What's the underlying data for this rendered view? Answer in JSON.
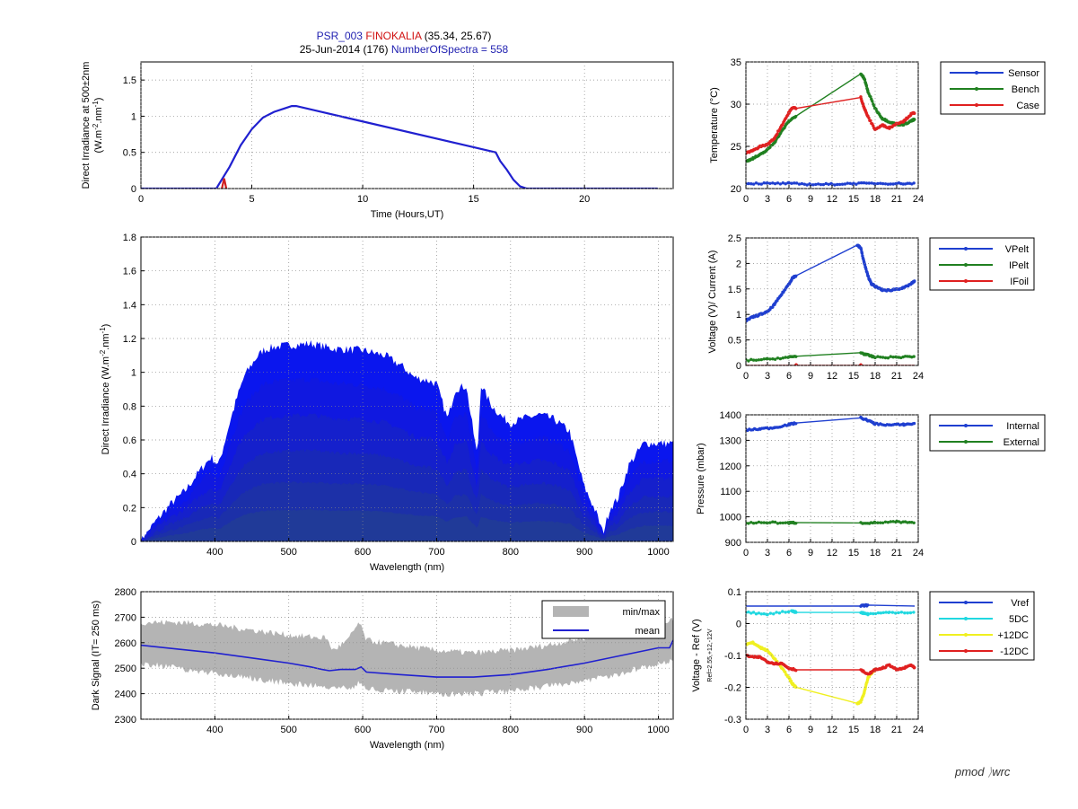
{
  "header": {
    "station_id": "PSR_003",
    "site": "FINOKALIA",
    "coords": "(35.34, 25.67)",
    "date_doy": "25-Jun-2014 (176)",
    "nspectra": "NumberOfSpectra = 558"
  },
  "logo": {
    "left": "pmod",
    "right": "wrc"
  },
  "chart_data": [
    {
      "id": "time-irradiance",
      "type": "line",
      "xlabel": "Time (Hours,UT)",
      "ylabel": [
        "Direct Irradiance at 500±2nm",
        "(W.m^-2.nm^-1)"
      ],
      "xlim": [
        0,
        24
      ],
      "ylim": [
        0,
        1.75
      ],
      "xticks": [
        0,
        5,
        10,
        15,
        20
      ],
      "yticks": [
        0,
        0.5,
        1,
        1.5
      ],
      "xtick_labels": [
        "0",
        "5",
        "10",
        "15",
        "20"
      ],
      "ytick_labels": [
        "0",
        "0.5",
        "1",
        "1.5"
      ],
      "grid": true,
      "series": [
        {
          "color": "#2020d0",
          "x": [
            0,
            3.4,
            3.6,
            4.0,
            4.5,
            5.0,
            5.5,
            6.0,
            6.5,
            6.8,
            7.0,
            16.0,
            16.2,
            16.5,
            16.8,
            17.1,
            17.4,
            18,
            20,
            22,
            23.3
          ],
          "y": [
            0,
            0,
            0.1,
            0.3,
            0.6,
            0.82,
            0.98,
            1.06,
            1.11,
            1.14,
            1.14,
            0.5,
            0.38,
            0.26,
            0.12,
            0.03,
            0,
            0,
            0,
            0,
            0
          ]
        },
        {
          "color": "#d02020",
          "x": [
            3.65,
            3.75,
            3.85
          ],
          "y": [
            0,
            0.14,
            0
          ]
        }
      ]
    },
    {
      "id": "spectra",
      "type": "area",
      "xlabel": "Wavelength (nm)",
      "ylabel": [
        "Direct Irradiance (W.m^-2.nm^-1)"
      ],
      "xlim": [
        300,
        1020
      ],
      "ylim": [
        0,
        1.8
      ],
      "xticks": [
        400,
        500,
        600,
        700,
        800,
        900,
        1000
      ],
      "yticks": [
        0,
        0.2,
        0.4,
        0.6,
        0.8,
        1,
        1.2,
        1.4,
        1.6,
        1.8
      ],
      "xtick_labels": [
        "400",
        "500",
        "600",
        "700",
        "800",
        "900",
        "1000"
      ],
      "ytick_labels": [
        "0",
        "0.2",
        "0.4",
        "0.6",
        "0.8",
        "1",
        "1.2",
        "1.4",
        "1.6",
        "1.8"
      ],
      "grid": true,
      "envelope": {
        "x": [
          300,
          320,
          340,
          360,
          380,
          395,
          405,
          420,
          430,
          440,
          455,
          465,
          480,
          500,
          530,
          560,
          600,
          630,
          655,
          670,
          690,
          700,
          715,
          725,
          740,
          755,
          760,
          765,
          775,
          790,
          800,
          820,
          840,
          860,
          880,
          895,
          900,
          915,
          925,
          935,
          945,
          960,
          980,
          1000,
          1020
        ],
        "y": [
          0,
          0.12,
          0.22,
          0.3,
          0.42,
          0.5,
          0.45,
          0.7,
          0.85,
          0.98,
          1.08,
          1.13,
          1.15,
          1.16,
          1.17,
          1.14,
          1.13,
          1.1,
          1.03,
          0.97,
          0.95,
          0.93,
          0.72,
          0.9,
          0.92,
          0.5,
          0.93,
          0.88,
          0.8,
          0.73,
          0.7,
          0.73,
          0.75,
          0.72,
          0.65,
          0.4,
          0.32,
          0.18,
          0.05,
          0.2,
          0.25,
          0.45,
          0.58,
          0.58,
          0.58
        ]
      },
      "colors": [
        "#0a16ee",
        "#1018e0",
        "#1520cc",
        "#1828b8",
        "#1c30a8",
        "#203a98"
      ]
    },
    {
      "id": "dark-signal",
      "type": "line",
      "xlabel": "Wavelength (nm)",
      "ylabel": [
        "Dark Signal (IT= 250 ms)"
      ],
      "xlim": [
        300,
        1020
      ],
      "ylim": [
        2300,
        2800
      ],
      "xticks": [
        400,
        500,
        600,
        700,
        800,
        900,
        1000
      ],
      "yticks": [
        2300,
        2400,
        2500,
        2600,
        2700,
        2800
      ],
      "xtick_labels": [
        "400",
        "500",
        "600",
        "700",
        "800",
        "900",
        "1000"
      ],
      "ytick_labels": [
        "2300",
        "2400",
        "2500",
        "2600",
        "2700",
        "2800"
      ],
      "grid": true,
      "legend": {
        "position": "top-right",
        "entries": [
          "min/max",
          "mean"
        ]
      },
      "band": {
        "x": [
          300,
          350,
          400,
          450,
          500,
          540,
          550,
          560,
          580,
          595,
          605,
          650,
          700,
          750,
          800,
          850,
          900,
          950,
          1000,
          1020
        ],
        "lower": [
          2520,
          2500,
          2480,
          2460,
          2440,
          2430,
          2420,
          2425,
          2420,
          2440,
          2420,
          2410,
          2400,
          2400,
          2410,
          2430,
          2450,
          2480,
          2520,
          2530
        ],
        "upper": [
          2680,
          2680,
          2670,
          2650,
          2630,
          2620,
          2620,
          2570,
          2610,
          2680,
          2610,
          2590,
          2570,
          2560,
          2570,
          2590,
          2620,
          2650,
          2680,
          2690
        ]
      },
      "mean": {
        "x": [
          300,
          350,
          400,
          450,
          500,
          530,
          545,
          555,
          570,
          590,
          598,
          605,
          650,
          700,
          750,
          800,
          850,
          900,
          950,
          1000,
          1015,
          1020
        ],
        "y": [
          2590,
          2575,
          2560,
          2540,
          2520,
          2505,
          2495,
          2490,
          2495,
          2495,
          2505,
          2485,
          2475,
          2465,
          2465,
          2475,
          2495,
          2520,
          2550,
          2580,
          2580,
          2610
        ]
      },
      "colors": {
        "band": "#b4b4b4",
        "mean": "#2020d0"
      }
    },
    {
      "id": "temperature",
      "type": "line",
      "ylabel": [
        "Temperature (°C)"
      ],
      "xlim": [
        0,
        24
      ],
      "ylim": [
        20,
        35
      ],
      "xticks": [
        0,
        3,
        6,
        9,
        12,
        15,
        18,
        21,
        24
      ],
      "yticks": [
        20,
        25,
        30,
        35
      ],
      "xtick_labels": [
        "0",
        "3",
        "6",
        "9",
        "12",
        "15",
        "18",
        "21",
        "24"
      ],
      "ytick_labels": [
        "20",
        "25",
        "30",
        "35"
      ],
      "grid": true,
      "legend": {
        "position": "right",
        "entries": [
          "Sensor",
          "Bench",
          "Case"
        ]
      },
      "series": [
        {
          "name": "Sensor",
          "color": "#1f3fd0",
          "x": [
            0,
            3,
            6,
            9,
            12,
            15,
            18,
            21,
            23.5
          ],
          "y": [
            20.6,
            20.6,
            20.6,
            20.5,
            20.5,
            20.6,
            20.6,
            20.6,
            20.6
          ]
        },
        {
          "name": "Bench",
          "color": "#208020",
          "x": [
            0,
            1,
            2,
            3,
            4,
            5,
            6,
            7,
            16,
            16.5,
            17,
            18,
            19,
            20,
            21,
            22,
            23,
            23.5
          ],
          "y": [
            23.2,
            23.6,
            24.0,
            24.6,
            25.5,
            26.8,
            28.0,
            28.6,
            33.6,
            33.0,
            31.5,
            29.5,
            28.3,
            27.9,
            27.6,
            27.6,
            28.0,
            28.2
          ]
        },
        {
          "name": "Case",
          "color": "#e02020",
          "x": [
            0,
            1,
            2,
            3,
            4,
            5,
            6,
            6.5,
            7,
            16,
            16.5,
            17,
            18,
            19,
            20,
            21,
            22,
            23,
            23.5
          ],
          "y": [
            24.2,
            24.5,
            25.0,
            25.2,
            26.0,
            27.5,
            29.0,
            29.6,
            29.5,
            30.8,
            29.5,
            28.5,
            27.0,
            27.5,
            27.2,
            27.7,
            28.0,
            28.8,
            29.0
          ]
        }
      ]
    },
    {
      "id": "voltage-current",
      "type": "line",
      "ylabel": [
        "Voltage (V)/ Current (A)"
      ],
      "xlim": [
        0,
        24
      ],
      "ylim": [
        0,
        2.5
      ],
      "xticks": [
        0,
        3,
        6,
        9,
        12,
        15,
        18,
        21,
        24
      ],
      "yticks": [
        0,
        0.5,
        1,
        1.5,
        2,
        2.5
      ],
      "xtick_labels": [
        "0",
        "3",
        "6",
        "9",
        "12",
        "15",
        "18",
        "21",
        "24"
      ],
      "ytick_labels": [
        "0",
        "0.5",
        "1",
        "1.5",
        "2",
        "2.5"
      ],
      "grid": true,
      "legend": {
        "position": "right",
        "entries": [
          "VPelt",
          "IPelt",
          "IFoil"
        ]
      },
      "series": [
        {
          "name": "VPelt",
          "color": "#1f3fd0",
          "x": [
            0,
            1,
            2,
            3,
            4,
            5,
            6,
            6.5,
            7,
            15.5,
            16,
            16.5,
            17,
            17.5,
            18,
            19,
            20,
            21,
            22,
            23,
            23.5
          ],
          "y": [
            0.88,
            0.95,
            1.0,
            1.05,
            1.2,
            1.4,
            1.6,
            1.72,
            1.76,
            2.36,
            2.3,
            2.0,
            1.75,
            1.6,
            1.55,
            1.48,
            1.47,
            1.5,
            1.52,
            1.6,
            1.65
          ]
        },
        {
          "name": "IPelt",
          "color": "#208020",
          "x": [
            0,
            3,
            6,
            7,
            16,
            17,
            18,
            21,
            23.5
          ],
          "y": [
            0.1,
            0.12,
            0.16,
            0.18,
            0.25,
            0.2,
            0.16,
            0.16,
            0.18
          ]
        },
        {
          "name": "IFoil",
          "color": "#e02020",
          "x": [
            0,
            7,
            7.01,
            16,
            16.01,
            23.5
          ],
          "y": [
            0,
            0,
            0,
            0,
            0,
            0
          ]
        }
      ]
    },
    {
      "id": "pressure",
      "type": "line",
      "ylabel": [
        "Pressure (mbar)"
      ],
      "xlim": [
        0,
        24
      ],
      "ylim": [
        900,
        1400
      ],
      "xticks": [
        0,
        3,
        6,
        9,
        12,
        15,
        18,
        21,
        24
      ],
      "yticks": [
        900,
        1000,
        1100,
        1200,
        1300,
        1400
      ],
      "xtick_labels": [
        "0",
        "3",
        "6",
        "9",
        "12",
        "15",
        "18",
        "21",
        "24"
      ],
      "ytick_labels": [
        "900",
        "1000",
        "1100",
        "1200",
        "1300",
        "1400"
      ],
      "grid": true,
      "legend": {
        "position": "right",
        "entries": [
          "Internal",
          "External"
        ]
      },
      "series": [
        {
          "name": "Internal",
          "color": "#1f3fd0",
          "x": [
            0,
            2,
            4,
            6,
            7,
            16,
            17,
            18,
            20,
            22,
            23.5
          ],
          "y": [
            1340,
            1345,
            1350,
            1362,
            1368,
            1388,
            1378,
            1365,
            1360,
            1362,
            1365
          ]
        },
        {
          "name": "External",
          "color": "#208020",
          "x": [
            0,
            3,
            6,
            7,
            16,
            18,
            21,
            23.5
          ],
          "y": [
            976,
            978,
            976,
            977,
            976,
            977,
            980,
            976
          ]
        }
      ]
    },
    {
      "id": "voltage-ref",
      "type": "line",
      "ylabel": [
        "Voltage - Ref (V)",
        "Ref=2.55,+12,-12V"
      ],
      "xlim": [
        0,
        24
      ],
      "ylim": [
        -0.3,
        0.1
      ],
      "xticks": [
        0,
        3,
        6,
        9,
        12,
        15,
        18,
        21,
        24
      ],
      "yticks": [
        -0.3,
        -0.2,
        -0.1,
        0,
        0.1
      ],
      "xtick_labels": [
        "0",
        "3",
        "6",
        "9",
        "12",
        "15",
        "18",
        "21",
        "24"
      ],
      "ytick_labels": [
        "-0.3",
        "-0.2",
        "-0.1",
        "0",
        "0.1"
      ],
      "grid": true,
      "legend": {
        "position": "right",
        "entries": [
          "Vref",
          "5DC",
          "+12DC",
          "-12DC"
        ]
      },
      "series": [
        {
          "name": "Vref",
          "color": "#1f3fd0",
          "x": [
            0,
            6,
            16,
            17,
            23.5
          ],
          "y": [
            0.055,
            0.055,
            0.055,
            0.058,
            0.055
          ]
        },
        {
          "name": "5DC",
          "color": "#20d8e0",
          "x": [
            0,
            3,
            6.5,
            7,
            16,
            17,
            20,
            23.5
          ],
          "y": [
            0.035,
            0.03,
            0.04,
            0.035,
            0.035,
            0.03,
            0.035,
            0.035
          ]
        },
        {
          "name": "+12DC",
          "color": "#f0f020",
          "x": [
            0,
            1,
            2,
            3,
            4,
            5,
            6,
            6.5,
            7,
            15.5,
            16,
            16.5,
            17,
            17.5,
            18
          ],
          "y": [
            -0.065,
            -0.06,
            -0.075,
            -0.085,
            -0.11,
            -0.14,
            -0.17,
            -0.19,
            -0.2,
            -0.25,
            -0.245,
            -0.215,
            -0.17,
            -0.155,
            -0.145
          ]
        },
        {
          "name": "-12DC",
          "color": "#e02020",
          "x": [
            0,
            1,
            2,
            3,
            4,
            5,
            6,
            7,
            16,
            17,
            18,
            19,
            20,
            21,
            22,
            23,
            23.5
          ],
          "y": [
            -0.1,
            -0.105,
            -0.105,
            -0.12,
            -0.125,
            -0.125,
            -0.14,
            -0.145,
            -0.145,
            -0.16,
            -0.145,
            -0.14,
            -0.13,
            -0.145,
            -0.14,
            -0.13,
            -0.14
          ]
        }
      ]
    }
  ]
}
